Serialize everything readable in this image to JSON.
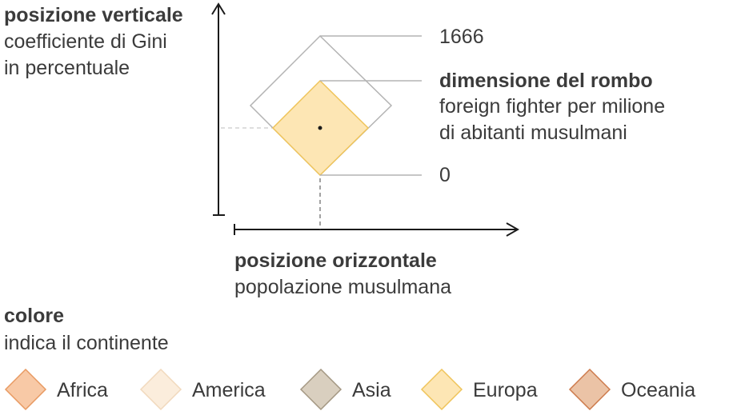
{
  "vertical": {
    "title": "posizione verticale",
    "line1": "coefficiente di Gini",
    "line2": "in percentuale"
  },
  "size": {
    "max": "1666",
    "title": "dimensione del rombo",
    "line1": "foreign fighter per milione",
    "line2": "di abitanti musulmani",
    "min": "0"
  },
  "horizontal": {
    "title": "posizione orizzontale",
    "subtitle": "popolazione musulmana"
  },
  "color": {
    "title": "colore",
    "subtitle": "indica il continente"
  },
  "legend": [
    {
      "label": "Africa",
      "fill": "#f8c9a6",
      "stroke": "#e89a62"
    },
    {
      "label": "America",
      "fill": "#fbeddc",
      "stroke": "#f1d9bd"
    },
    {
      "label": "Asia",
      "fill": "#d9cfbf",
      "stroke": "#a39782"
    },
    {
      "label": "Europa",
      "fill": "#fde6b4",
      "stroke": "#efc45a"
    },
    {
      "label": "Oceania",
      "fill": "#ebc3a6",
      "stroke": "#cd7a4b"
    }
  ]
}
